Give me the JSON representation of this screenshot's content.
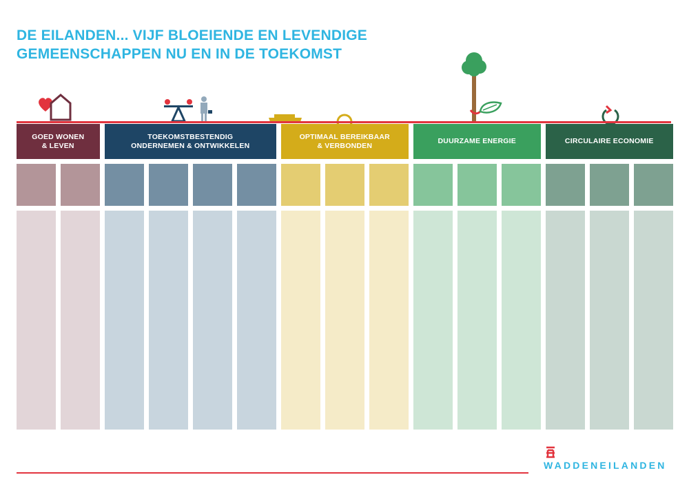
{
  "title": {
    "line1": "DE EILANDEN... VIJF BLOEIENDE EN LEVENDIGE",
    "line2": "GEMEENSCHAPPEN NU EN IN DE TOEKOMST"
  },
  "themes": [
    {
      "line1": "GOED WONEN",
      "line2": "& LEVEN",
      "color": "#6f2f3f",
      "light": "#b39599",
      "pale": "#e2d5d8",
      "columns": 2,
      "icon": "heart-house-icon"
    },
    {
      "line1": "TOEKOMSTBESTENDIG",
      "line2": "ONDERNEMEN & ONTWIKKELEN",
      "color": "#1e4565",
      "light": "#748fa3",
      "pale": "#c8d5de",
      "columns": 4,
      "icon": "seesaw-businessman-icon"
    },
    {
      "line1": "OPTIMAAL BEREIKBAAR",
      "line2": "& VERBONDEN",
      "color": "#d4ac1a",
      "light": "#e4cd72",
      "pale": "#f5ebc8",
      "columns": 3,
      "icon": "ferry-sun-icon"
    },
    {
      "line1": "DUURZAME ENERGIE",
      "line2": "",
      "color": "#3aa05e",
      "light": "#86c59b",
      "pale": "#cee6d6",
      "columns": 3,
      "icon": "tree-leaf-icon"
    },
    {
      "line1": "CIRCULAIRE ECONOMIE",
      "line2": "",
      "color": "#2b6248",
      "light": "#7ea191",
      "pale": "#c9d8d1",
      "columns": 3,
      "icon": "recycle-circle-icon"
    }
  ],
  "footer": {
    "logo_text": "WADDENEILANDEN",
    "accent": "#e2343e"
  }
}
